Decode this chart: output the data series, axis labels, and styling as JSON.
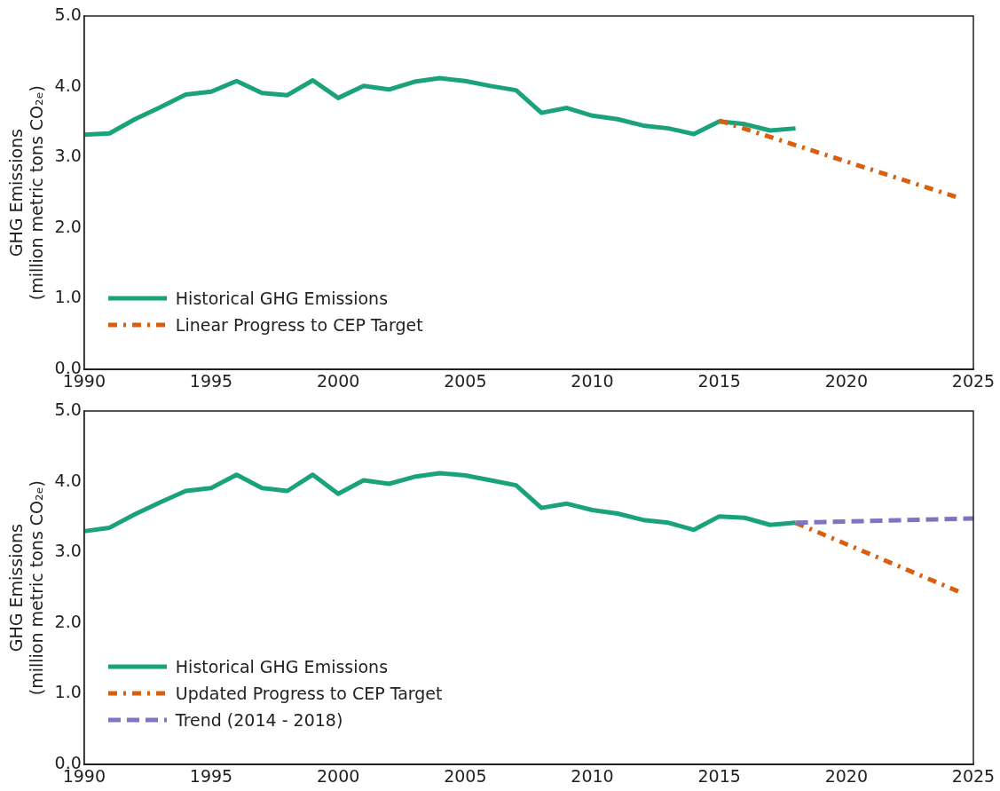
{
  "chart_data": [
    {
      "type": "line",
      "ylabel": "GHG Emissions (million metric tons CO₂ₑ)",
      "xlim": [
        1990,
        2025
      ],
      "xticks": [
        1990,
        1995,
        2000,
        2005,
        2010,
        2015,
        2020,
        2025
      ],
      "ylim": [
        0,
        5
      ],
      "yticks": [
        {
          "value": 0,
          "label": "0.0"
        },
        {
          "value": 1,
          "label": "1.0"
        },
        {
          "value": 2,
          "label": "2.0"
        },
        {
          "value": 3,
          "label": "3.0"
        },
        {
          "value": 4,
          "label": "4.0"
        },
        {
          "value": 5,
          "label": "5.0"
        }
      ],
      "grid": false,
      "legend": "bottom left",
      "marker": "none",
      "series": [
        {
          "name": "Historical GHG Emissions",
          "color": "#1aa37a",
          "line_style": "solid",
          "x": [
            1990,
            1991,
            1992,
            1993,
            1994,
            1995,
            1996,
            1997,
            1998,
            1999,
            2000,
            2001,
            2002,
            2003,
            2004,
            2005,
            2006,
            2007,
            2008,
            2009,
            2010,
            2011,
            2012,
            2013,
            2014,
            2015,
            2016,
            2017,
            2018
          ],
          "values": [
            3.32,
            3.34,
            3.54,
            3.71,
            3.89,
            3.93,
            4.08,
            3.91,
            3.88,
            4.09,
            3.84,
            4.01,
            3.96,
            4.07,
            4.12,
            4.08,
            4.01,
            3.95,
            3.63,
            3.7,
            3.59,
            3.54,
            3.45,
            3.41,
            3.33,
            3.51,
            3.47,
            3.38,
            3.41
          ]
        },
        {
          "name": "Linear Progress to CEP Target",
          "color": "#d95f0e",
          "line_style": "dashdot",
          "x": [
            2015,
            2024.5
          ],
          "values": [
            3.52,
            2.42
          ]
        }
      ]
    },
    {
      "type": "line",
      "ylabel": "GHG Emissions (million metric tons CO₂ₑ)",
      "xlim": [
        1990,
        2025
      ],
      "xticks": [
        1990,
        1995,
        2000,
        2005,
        2010,
        2015,
        2020,
        2025
      ],
      "ylim": [
        0,
        5
      ],
      "yticks": [
        {
          "value": 0,
          "label": "0.0"
        },
        {
          "value": 1,
          "label": "1.0"
        },
        {
          "value": 2,
          "label": "2.0"
        },
        {
          "value": 3,
          "label": "3.0"
        },
        {
          "value": 4,
          "label": "4.0"
        },
        {
          "value": 5,
          "label": "5.0"
        }
      ],
      "grid": false,
      "legend": "bottom left",
      "marker": "none",
      "series": [
        {
          "name": "Historical GHG Emissions",
          "color": "#1aa37a",
          "line_style": "solid",
          "x": [
            1990,
            1991,
            1992,
            1993,
            1994,
            1995,
            1996,
            1997,
            1998,
            1999,
            2000,
            2001,
            2002,
            2003,
            2004,
            2005,
            2006,
            2007,
            2008,
            2009,
            2010,
            2011,
            2012,
            2013,
            2014,
            2015,
            2016,
            2017,
            2018
          ],
          "values": [
            3.3,
            3.35,
            3.54,
            3.71,
            3.87,
            3.91,
            4.1,
            3.91,
            3.87,
            4.1,
            3.83,
            4.02,
            3.97,
            4.07,
            4.12,
            4.09,
            4.02,
            3.95,
            3.63,
            3.69,
            3.6,
            3.55,
            3.46,
            3.42,
            3.32,
            3.51,
            3.49,
            3.39,
            3.42
          ]
        },
        {
          "name": "Updated Progress to CEP Target",
          "color": "#d95f0e",
          "line_style": "dashdot",
          "x": [
            2018,
            2024.6
          ],
          "values": [
            3.42,
            2.42
          ]
        },
        {
          "name": "Trend (2014 - 2018)",
          "color": "#8073c0",
          "line_style": "dashed",
          "x": [
            2018,
            2025
          ],
          "values": [
            3.42,
            3.48
          ]
        }
      ]
    }
  ]
}
